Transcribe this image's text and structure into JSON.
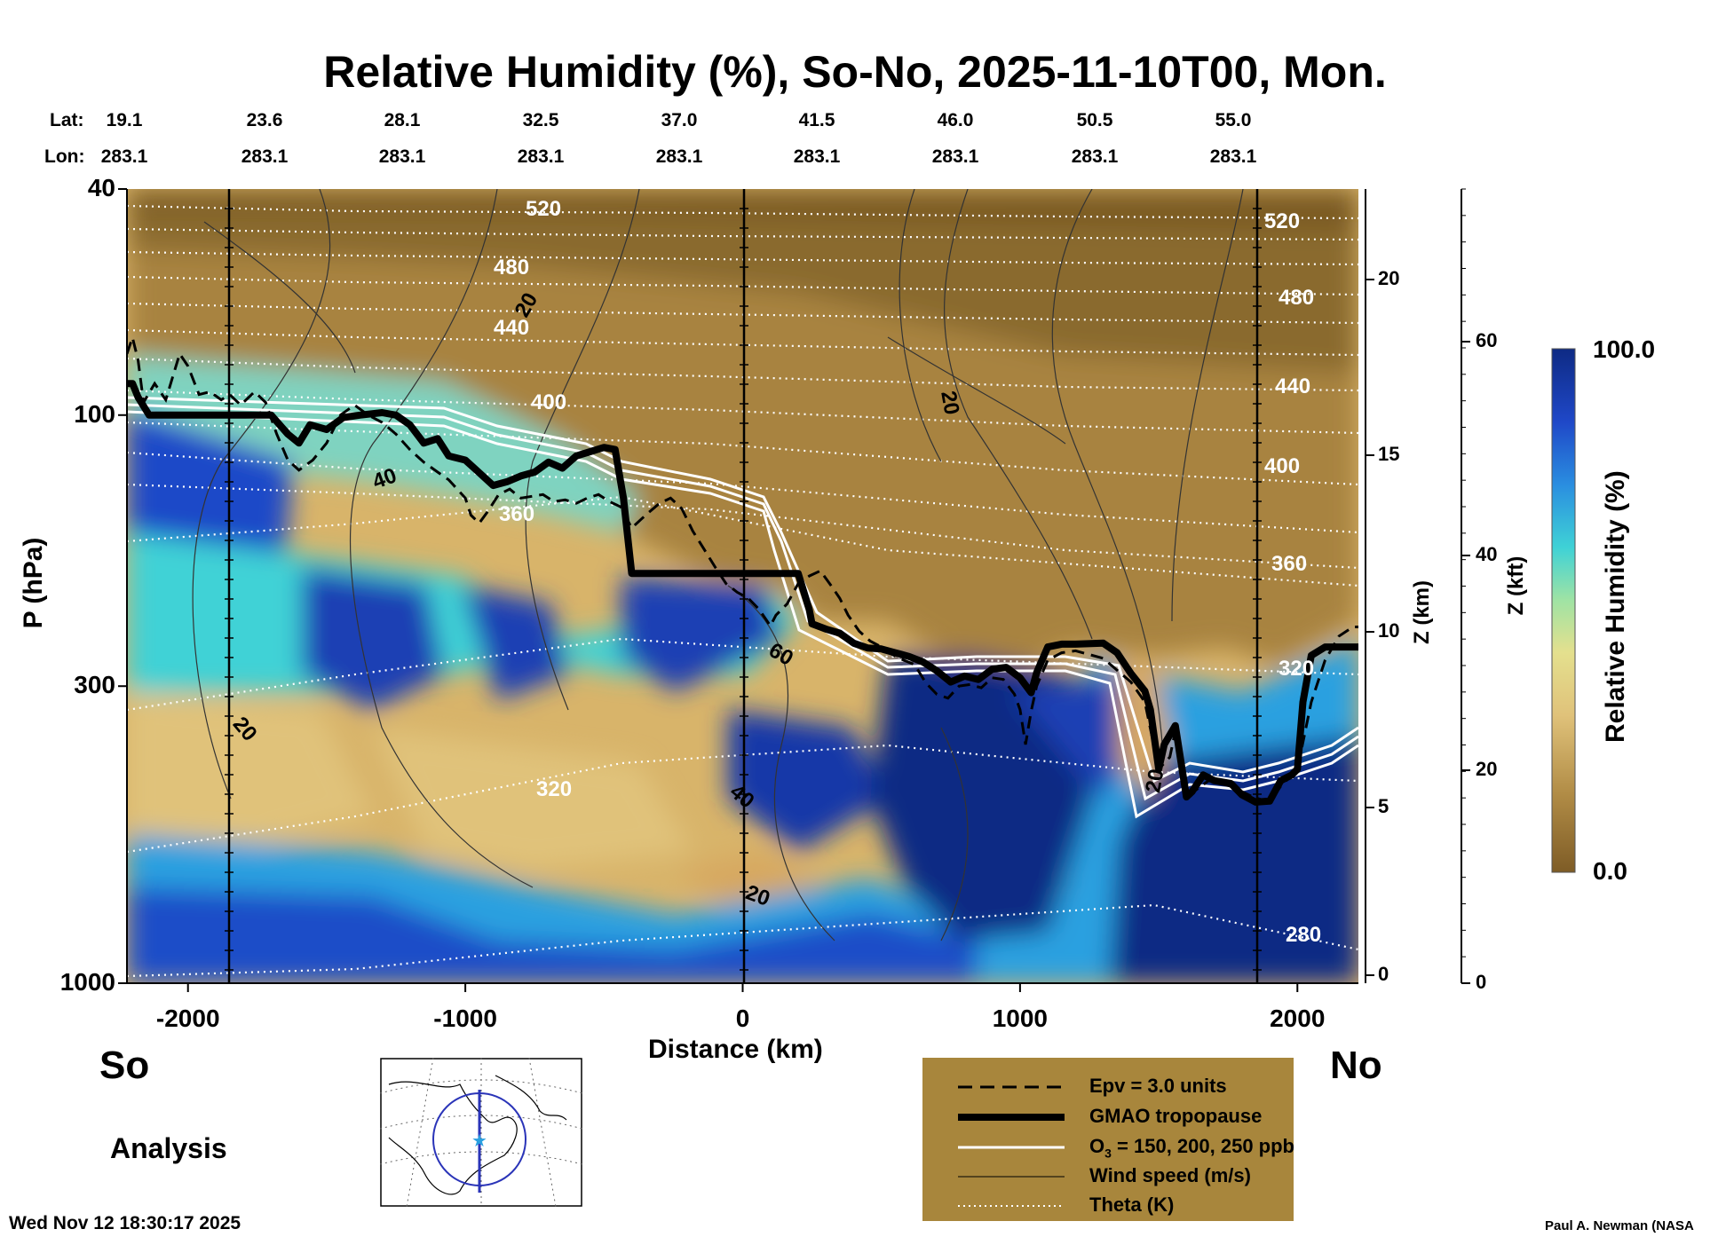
{
  "title": "Relative Humidity (%), So-No, 2025-11-10T00, Mon.",
  "header": {
    "lat_label": "Lat:",
    "lon_label": "Lon:",
    "lats": [
      "19.1",
      "23.6",
      "28.1",
      "32.5",
      "37.0",
      "41.5",
      "46.0",
      "50.5",
      "55.0"
    ],
    "lons": [
      "283.1",
      "283.1",
      "283.1",
      "283.1",
      "283.1",
      "283.1",
      "283.1",
      "283.1",
      "283.1"
    ]
  },
  "chart_data": {
    "type": "heatmap",
    "title": "Relative Humidity (%), So-No, 2025-11-10T00, Mon.",
    "xlabel": "Distance (km)",
    "ylabel": "P (hPa)",
    "xlim": [
      -2220,
      2220
    ],
    "ylim": [
      1000,
      40
    ],
    "x_ticks": [
      "-2000",
      "-1000",
      "0",
      "1000",
      "2000"
    ],
    "y_ticks": [
      "40",
      "100",
      "300",
      "1000"
    ],
    "z_km_label": "Z (km)",
    "z_km_ticks": [
      "20",
      "15",
      "10",
      "5",
      "0"
    ],
    "z_kft_label": "Z (kft)",
    "z_kft_ticks": [
      "60",
      "40",
      "20",
      "0"
    ],
    "colorbar": {
      "label": "Relative Humidity (%)",
      "max": "100.0",
      "min": "0.0"
    },
    "theta_labels": [
      "520",
      "480",
      "440",
      "400",
      "360",
      "320",
      "280"
    ],
    "wind_labels": [
      "20",
      "40",
      "60"
    ],
    "tropopause_line": [
      [
        -2220,
        88
      ],
      [
        -2200,
        88
      ],
      [
        -2180,
        93
      ],
      [
        -2140,
        100
      ],
      [
        -2000,
        100
      ],
      [
        -1700,
        100
      ],
      [
        -1640,
        108
      ],
      [
        -1600,
        112
      ],
      [
        -1560,
        104
      ],
      [
        -1500,
        106
      ],
      [
        -1440,
        101
      ],
      [
        -1380,
        100
      ],
      [
        -1300,
        99
      ],
      [
        -1250,
        100
      ],
      [
        -1200,
        104
      ],
      [
        -1150,
        112
      ],
      [
        -1100,
        110
      ],
      [
        -1060,
        118
      ],
      [
        -1000,
        120
      ],
      [
        -960,
        125
      ],
      [
        -900,
        133
      ],
      [
        -850,
        131
      ],
      [
        -800,
        128
      ],
      [
        -750,
        126
      ],
      [
        -700,
        121
      ],
      [
        -650,
        124
      ],
      [
        -600,
        118
      ],
      [
        -550,
        116
      ],
      [
        -500,
        114
      ],
      [
        -460,
        115
      ],
      [
        -430,
        140
      ],
      [
        -400,
        190
      ],
      [
        -300,
        190
      ],
      [
        0,
        190
      ],
      [
        200,
        190
      ],
      [
        240,
        220
      ],
      [
        250,
        233
      ],
      [
        300,
        238
      ],
      [
        350,
        242
      ],
      [
        400,
        252
      ],
      [
        450,
        257
      ],
      [
        500,
        258
      ],
      [
        550,
        262
      ],
      [
        600,
        266
      ],
      [
        650,
        272
      ],
      [
        700,
        282
      ],
      [
        750,
        295
      ],
      [
        800,
        288
      ],
      [
        850,
        292
      ],
      [
        900,
        280
      ],
      [
        950,
        278
      ],
      [
        1000,
        290
      ],
      [
        1040,
        308
      ],
      [
        1060,
        284
      ],
      [
        1100,
        256
      ],
      [
        1150,
        253
      ],
      [
        1200,
        253
      ],
      [
        1300,
        252
      ],
      [
        1350,
        262
      ],
      [
        1400,
        285
      ],
      [
        1450,
        306
      ],
      [
        1470,
        330
      ],
      [
        1500,
        420
      ],
      [
        1520,
        380
      ],
      [
        1560,
        352
      ],
      [
        1600,
        470
      ],
      [
        1620,
        460
      ],
      [
        1660,
        430
      ],
      [
        1700,
        440
      ],
      [
        1760,
        445
      ],
      [
        1800,
        466
      ],
      [
        1850,
        480
      ],
      [
        1900,
        478
      ],
      [
        1940,
        440
      ],
      [
        1980,
        430
      ],
      [
        2000,
        420
      ],
      [
        2020,
        320
      ],
      [
        2050,
        265
      ],
      [
        2100,
        256
      ],
      [
        2200,
        256
      ],
      [
        2220,
        256
      ]
    ],
    "epv_line": [
      [
        -2220,
        78
      ],
      [
        -2200,
        73
      ],
      [
        -2180,
        80
      ],
      [
        -2160,
        95
      ],
      [
        -2120,
        88
      ],
      [
        -2080,
        94
      ],
      [
        -2030,
        78
      ],
      [
        -2000,
        82
      ],
      [
        -1960,
        92
      ],
      [
        -1920,
        91
      ],
      [
        -1880,
        94
      ],
      [
        -1850,
        92
      ],
      [
        -1810,
        96
      ],
      [
        -1760,
        91
      ],
      [
        -1720,
        95
      ],
      [
        -1680,
        108
      ],
      [
        -1640,
        120
      ],
      [
        -1600,
        125
      ],
      [
        -1550,
        120
      ],
      [
        -1500,
        112
      ],
      [
        -1450,
        100
      ],
      [
        -1400,
        96
      ],
      [
        -1350,
        100
      ],
      [
        -1300,
        103
      ],
      [
        -1250,
        108
      ],
      [
        -1200,
        115
      ],
      [
        -1150,
        121
      ],
      [
        -1100,
        126
      ],
      [
        -1060,
        130
      ],
      [
        -1000,
        140
      ],
      [
        -980,
        150
      ],
      [
        -950,
        155
      ],
      [
        -920,
        148
      ],
      [
        -880,
        138
      ],
      [
        -840,
        135
      ],
      [
        -800,
        140
      ],
      [
        -760,
        139
      ],
      [
        -720,
        138
      ],
      [
        -680,
        142
      ],
      [
        -640,
        141
      ],
      [
        -600,
        143
      ],
      [
        -560,
        140
      ],
      [
        -520,
        138
      ],
      [
        -480,
        142
      ],
      [
        -440,
        145
      ],
      [
        -400,
        158
      ],
      [
        -350,
        150
      ],
      [
        -300,
        143
      ],
      [
        -260,
        140
      ],
      [
        -220,
        146
      ],
      [
        -180,
        160
      ],
      [
        -140,
        172
      ],
      [
        -100,
        185
      ],
      [
        -60,
        198
      ],
      [
        -20,
        205
      ],
      [
        20,
        210
      ],
      [
        60,
        220
      ],
      [
        100,
        235
      ],
      [
        120,
        225
      ],
      [
        160,
        215
      ],
      [
        200,
        198
      ],
      [
        240,
        192
      ],
      [
        280,
        188
      ],
      [
        320,
        200
      ],
      [
        350,
        210
      ],
      [
        380,
        225
      ],
      [
        420,
        240
      ],
      [
        460,
        250
      ],
      [
        500,
        256
      ],
      [
        540,
        264
      ],
      [
        580,
        270
      ],
      [
        620,
        275
      ],
      [
        660,
        296
      ],
      [
        700,
        310
      ],
      [
        740,
        315
      ],
      [
        780,
        300
      ],
      [
        820,
        298
      ],
      [
        860,
        302
      ],
      [
        900,
        290
      ],
      [
        940,
        292
      ],
      [
        980,
        310
      ],
      [
        1000,
        330
      ],
      [
        1020,
        380
      ],
      [
        1040,
        332
      ],
      [
        1060,
        300
      ],
      [
        1100,
        270
      ],
      [
        1150,
        262
      ],
      [
        1200,
        260
      ],
      [
        1300,
        268
      ],
      [
        1400,
        295
      ],
      [
        1450,
        320
      ],
      [
        1500,
        420
      ],
      [
        1540,
        400
      ],
      [
        1560,
        360
      ],
      [
        1600,
        470
      ],
      [
        1680,
        440
      ],
      [
        1760,
        450
      ],
      [
        1840,
        470
      ],
      [
        1900,
        480
      ],
      [
        1940,
        450
      ],
      [
        2000,
        420
      ],
      [
        2050,
        320
      ],
      [
        2100,
        270
      ],
      [
        2150,
        245
      ],
      [
        2200,
        236
      ],
      [
        2220,
        236
      ]
    ],
    "legend": [
      {
        "style": "dashed",
        "label": "Epv = 3.0 units"
      },
      {
        "style": "thick",
        "label": "GMAO tropopause"
      },
      {
        "style": "double",
        "label_pre": "O",
        "label_sub": "3",
        "label_post": " = 150, 200, 250 ppb"
      },
      {
        "style": "thin",
        "label": "Wind speed (m/s)"
      },
      {
        "style": "dotted",
        "label": "Theta (K)"
      }
    ]
  },
  "sides": {
    "south": "So",
    "north": "No"
  },
  "mode": "Analysis",
  "timestamp": "Wed Nov 12 18:30:17 2025",
  "credit": "Paul A. Newman (NASA",
  "colors": {
    "brown_dark": "#7e5c26",
    "brown": "#a88340",
    "tan": "#d3ad64",
    "yellow": "#e9d98a",
    "cyan": "#3fd2d6",
    "blue": "#2050c8",
    "navy": "#0e2a84",
    "legend_bg": "#a8863c"
  }
}
